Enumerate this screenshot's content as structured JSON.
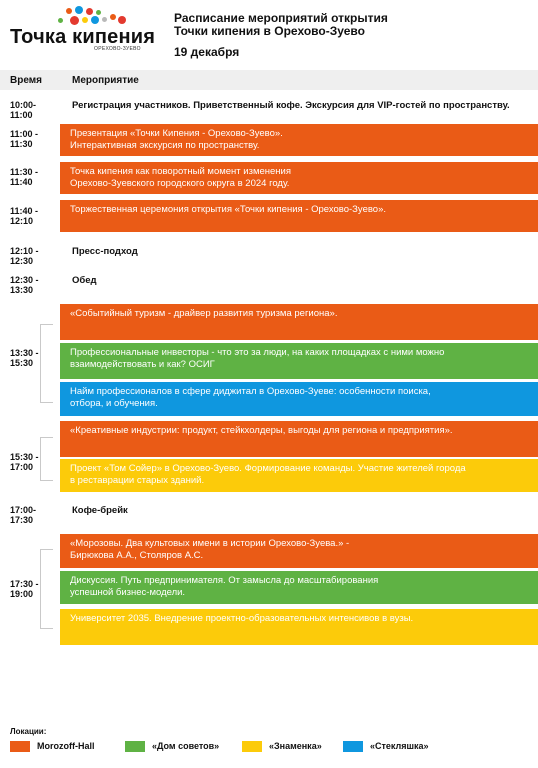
{
  "logo": {
    "title": "Точка кипения",
    "subtitle": "ОРЕХОВО-ЗУЕВО",
    "dot_colors": [
      "#ea5b16",
      "#0f97df",
      "#e33a2f",
      "#fccb0a",
      "#5fb244",
      "#b9b9b9"
    ]
  },
  "header": {
    "title_line1": "Расписание мероприятий открытия",
    "title_line2": "Точки кипения в Орехово-Зуево",
    "date": "19 декабря"
  },
  "table": {
    "col_time": "Время",
    "col_event": "Мероприятие"
  },
  "schedule": [
    {
      "time": "10:00-\n11:00",
      "style": "plain",
      "text": "Регистрация участников. Приветственный кофе. Экскурсия для VIP-гостей по пространству."
    },
    {
      "time": "11:00 -\n11:30",
      "style": "orange",
      "text": "Презентация «Точки Кипения - Орехово-Зуево».\nИнтерактивная экскурсия по пространству."
    },
    {
      "time": "11:30 -\n11:40",
      "style": "orange",
      "text": "Точка кипения как поворотный момент изменения\nОрехово-Зуевского городского округа в 2024 году."
    },
    {
      "time": "11:40 -\n12:10",
      "style": "orange",
      "text": "Торжественная церемония открытия «Точки кипения - Орехово-Зуево»."
    },
    {
      "time": "12:10 -\n12:30",
      "style": "plain",
      "text": "Пресс-подход"
    },
    {
      "time": "12:30 -\n13:30",
      "style": "plain",
      "text": "Обед"
    },
    {
      "time": "13:30 -\n15:30",
      "group": [
        {
          "style": "orange",
          "text": "«Событийный туризм - драйвер развития туризма региона»."
        },
        {
          "style": "green",
          "text": "Профессиональные инвесторы - что это за люди, на каких площадках с ними можно\nвзаимодействовать и как? ОСИГ"
        },
        {
          "style": "blue",
          "text": "Найм профессионалов в сфере диджитал в Орехово-Зуеве: особенности поиска,\nотбора, и обучения."
        }
      ]
    },
    {
      "time": "15:30 -\n17:00",
      "group": [
        {
          "style": "orange",
          "text": "«Креативные индустрии: продукт, стейкхолдеры, выгоды для региона и предприятия»."
        },
        {
          "style": "yellow",
          "text": "Проект «Том Сойер» в Орехово-Зуево. Формирование команды. Участие жителей города\nв реставрации старых зданий."
        }
      ]
    },
    {
      "time": "17:00-\n17:30",
      "style": "plain",
      "text": "Кофе-брейк"
    },
    {
      "time": "17:30 -\n19:00",
      "group": [
        {
          "style": "orange",
          "text": "«Морозовы. Два культовых имени в истории Орехово-Зуева.» -\nБирюкова А.А., Столяров А.С."
        },
        {
          "style": "green",
          "text": "Дискуссия. Путь предпринимателя. От замысла до масштабирования\nуспешной бизнес-модели."
        },
        {
          "style": "yellow",
          "text": "Университет 2035. Внедрение проектно-образовательных интенсивов в вузы."
        }
      ]
    }
  ],
  "locations": {
    "title": "Локации:",
    "items": [
      {
        "label": "Morozoff-Hall",
        "color": "#ea5b16"
      },
      {
        "label": "«Дом советов»",
        "color": "#5fb244"
      },
      {
        "label": "«Знаменка»",
        "color": "#fccb0a"
      },
      {
        "label": "«Стекляшка»",
        "color": "#0f97df"
      }
    ]
  }
}
